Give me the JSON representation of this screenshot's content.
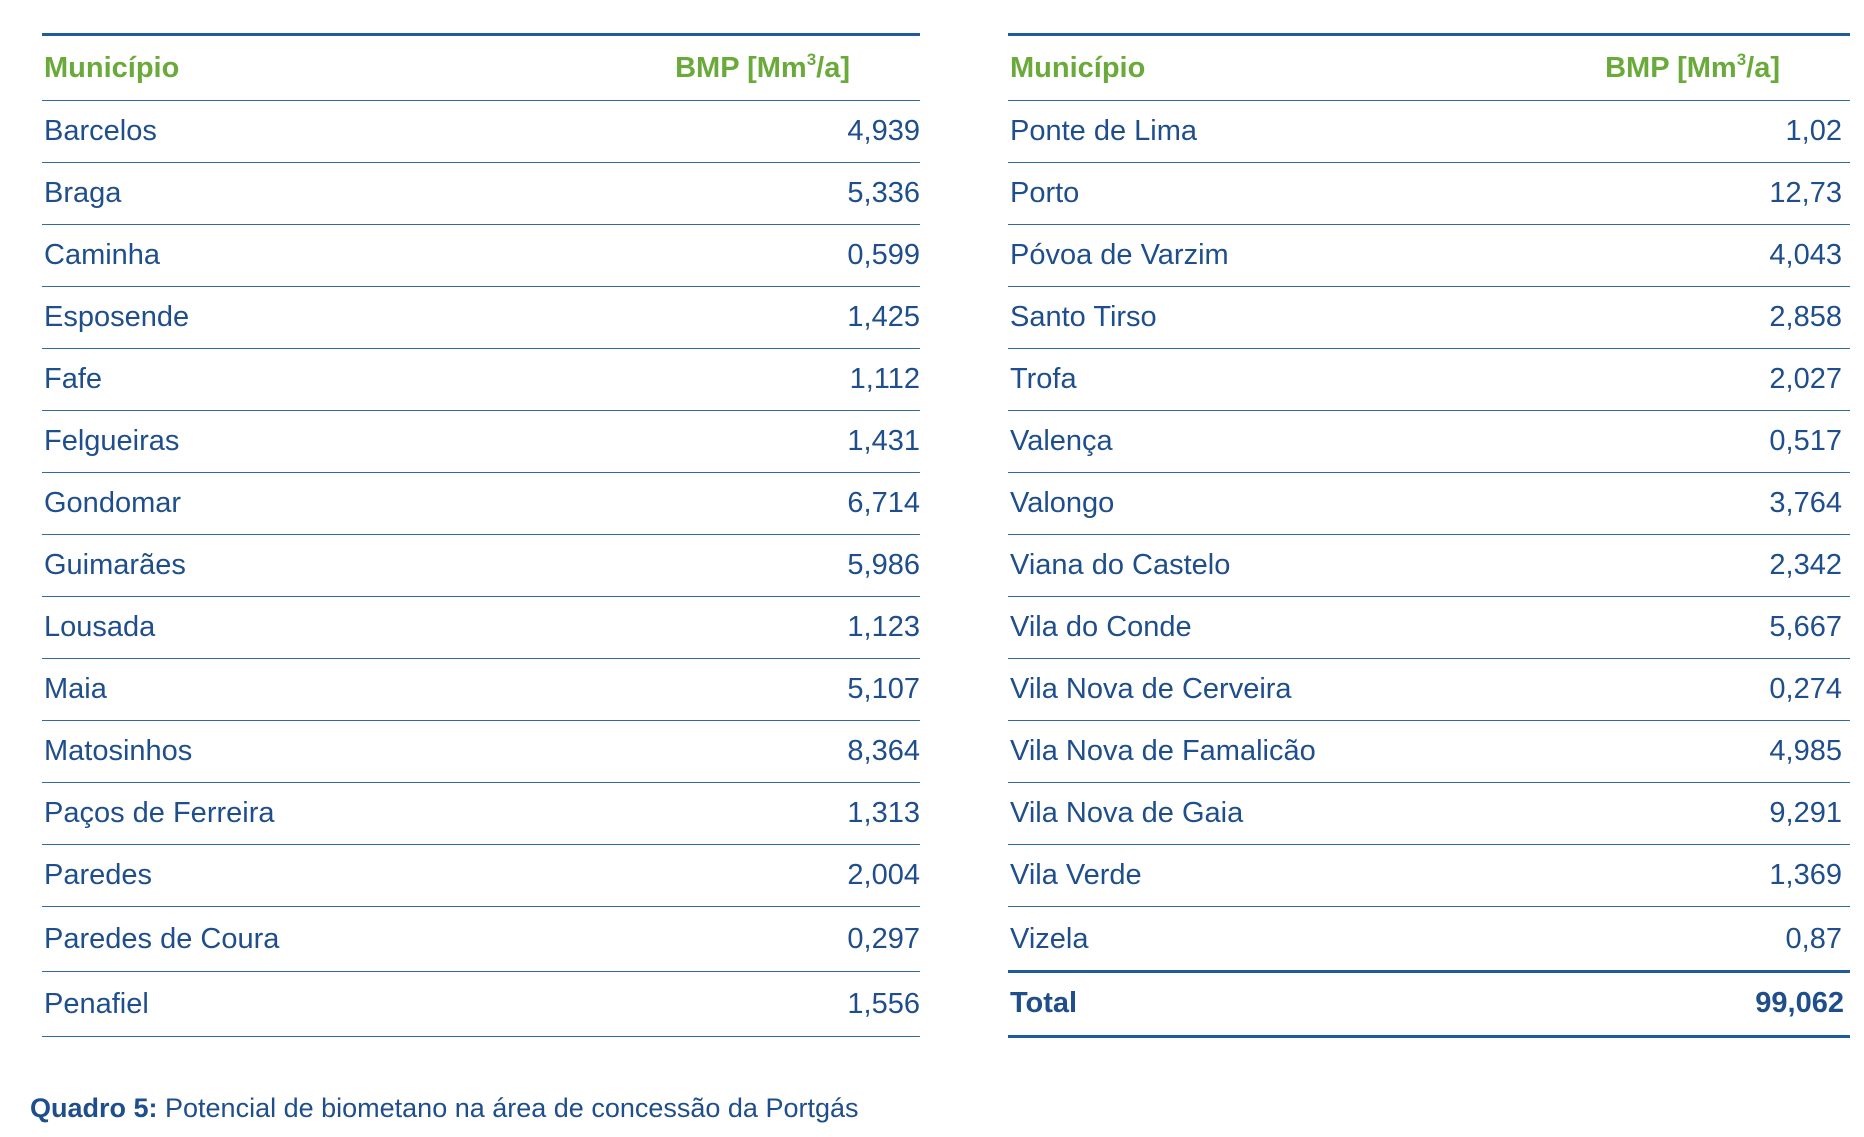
{
  "left_table": {
    "header": {
      "municipio": "Município",
      "bmp_prefix": "BMP [Mm",
      "bmp_sup": "3",
      "bmp_suffix": "/a]"
    },
    "rows": [
      {
        "name": "Barcelos",
        "value": "4,939"
      },
      {
        "name": "Braga",
        "value": "5,336"
      },
      {
        "name": "Caminha",
        "value": "0,599"
      },
      {
        "name": "Esposende",
        "value": "1,425"
      },
      {
        "name": "Fafe",
        "value": "1,112"
      },
      {
        "name": "Felgueiras",
        "value": "1,431"
      },
      {
        "name": "Gondomar",
        "value": "6,714"
      },
      {
        "name": "Guimarães",
        "value": "5,986"
      },
      {
        "name": "Lousada",
        "value": "1,123"
      },
      {
        "name": "Maia",
        "value": "5,107"
      },
      {
        "name": "Matosinhos",
        "value": "8,364"
      },
      {
        "name": "Paços de Ferreira",
        "value": "1,313"
      },
      {
        "name": "Paredes",
        "value": "2,004"
      },
      {
        "name": "Paredes de Coura",
        "value": "0,297"
      },
      {
        "name": "Penafiel",
        "value": "1,556"
      }
    ]
  },
  "right_table": {
    "header": {
      "municipio": "Município",
      "bmp_prefix": "BMP [Mm",
      "bmp_sup": "3",
      "bmp_suffix": "/a]"
    },
    "rows": [
      {
        "name": "Ponte de Lima",
        "value": "1,02"
      },
      {
        "name": "Porto",
        "value": "12,73"
      },
      {
        "name": "Póvoa de Varzim",
        "value": "4,043"
      },
      {
        "name": "Santo Tirso",
        "value": "2,858"
      },
      {
        "name": "Trofa",
        "value": "2,027"
      },
      {
        "name": "Valença",
        "value": "0,517"
      },
      {
        "name": "Valongo",
        "value": "3,764"
      },
      {
        "name": "Viana do Castelo",
        "value": "2,342"
      },
      {
        "name": "Vila do Conde",
        "value": "5,667"
      },
      {
        "name": "Vila Nova de Cerveira",
        "value": "0,274"
      },
      {
        "name": "Vila Nova de Famalicão",
        "value": "4,985"
      },
      {
        "name": "Vila Nova de Gaia",
        "value": "9,291"
      },
      {
        "name": "Vila Verde",
        "value": "1,369"
      },
      {
        "name": "Vizela",
        "value": "0,87"
      }
    ],
    "total": {
      "label": "Total",
      "value": "99,062"
    }
  },
  "caption": {
    "label": "Quadro 5:",
    "text": " Potencial de biometano na área de concessão da Portgás"
  },
  "colors": {
    "header_green": "#6aaa3a",
    "text_blue": "#1f4e8c",
    "rule_blue": "#1f5c99"
  }
}
